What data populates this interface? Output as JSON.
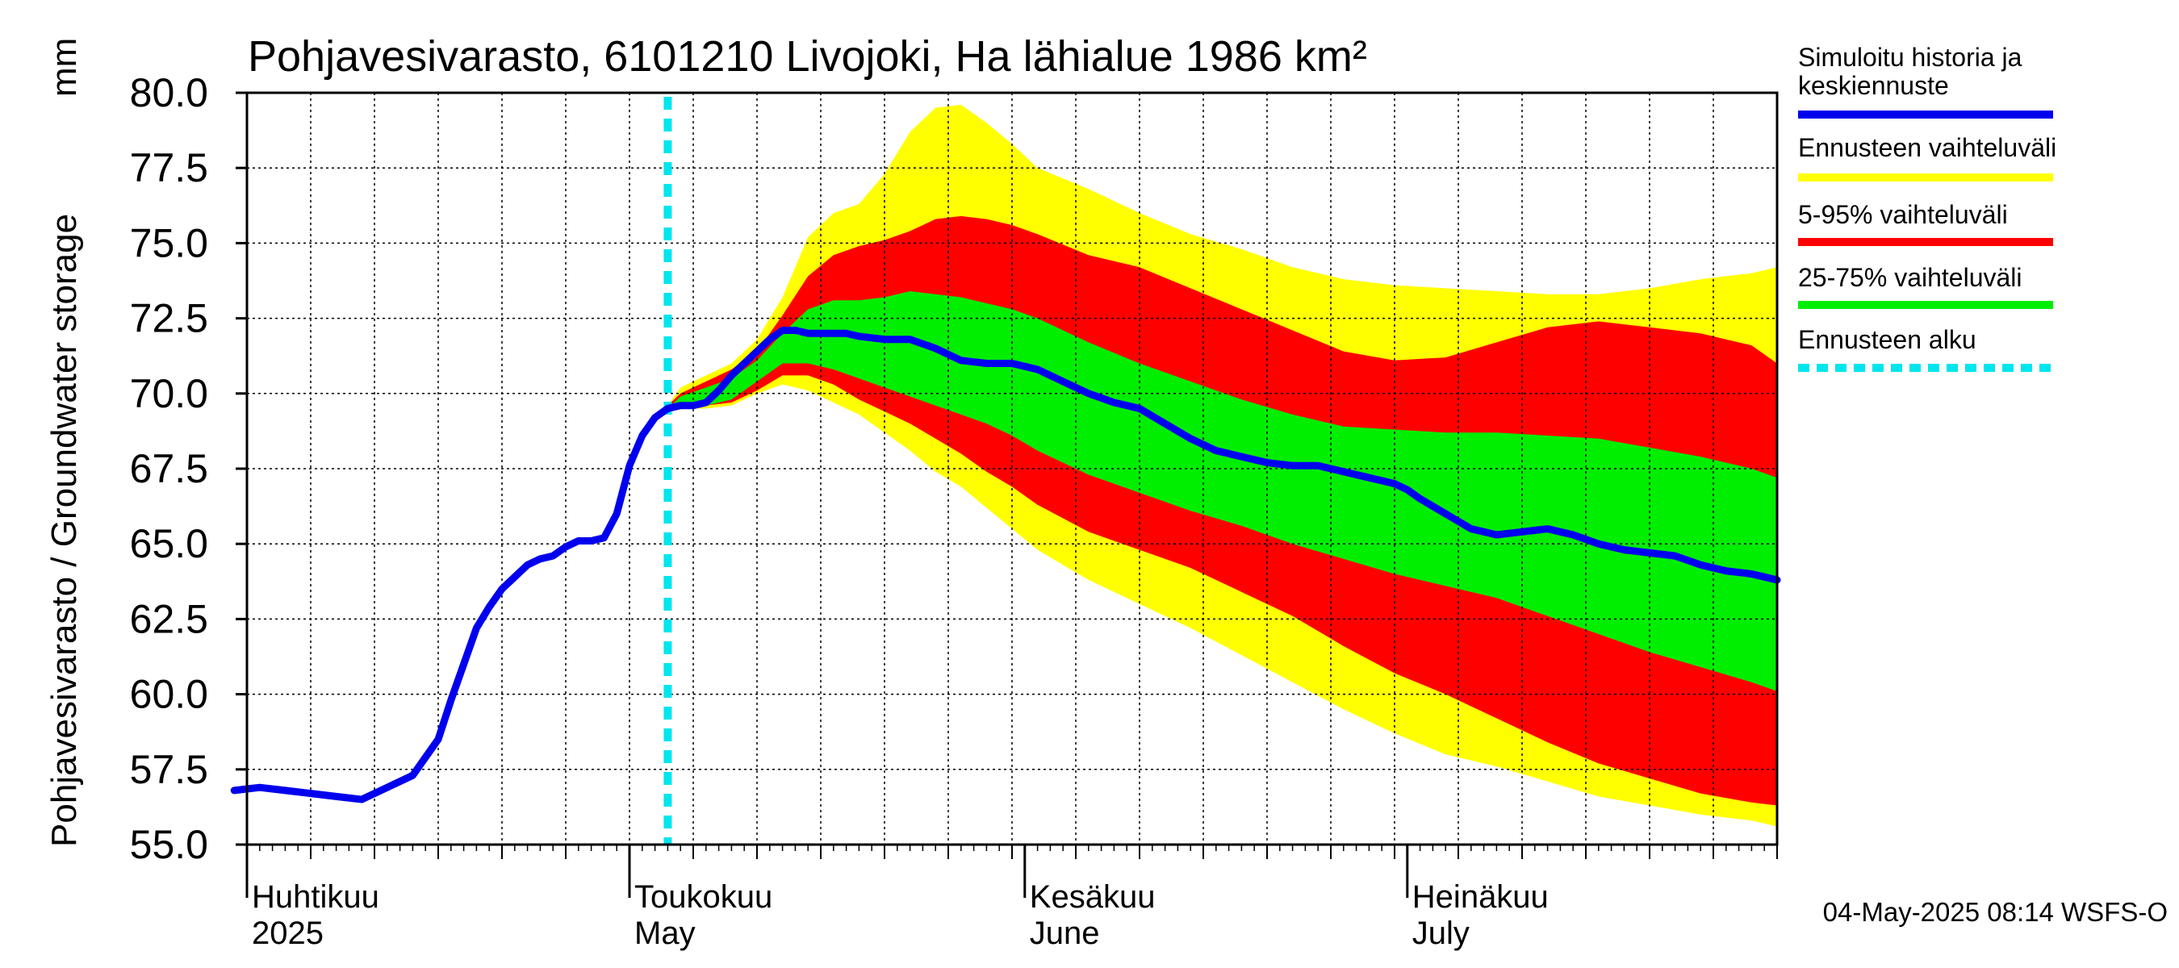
{
  "chart_data": {
    "type": "area",
    "title": "Pohjavesivarasto, 6101210 Livojoki, Ha lähialue 1986 km²",
    "ylabel": "Pohjavesivarasto / Groundwater storage",
    "yunit": "mm",
    "ylim": [
      55.0,
      80.0
    ],
    "yticks": [
      "55.0",
      "57.5",
      "60.0",
      "62.5",
      "65.0",
      "67.5",
      "70.0",
      "72.5",
      "75.0",
      "77.5",
      "80.0"
    ],
    "x_day_range": [
      0,
      120
    ],
    "forecast_start_day": 33,
    "months": [
      {
        "fi": "Huhtikuu",
        "en": "2025",
        "day": 0
      },
      {
        "fi": "Toukokuu",
        "en": "May",
        "day": 30
      },
      {
        "fi": "Kesäkuu",
        "en": "June",
        "day": 61
      },
      {
        "fi": "Heinäkuu",
        "en": "July",
        "day": 91
      }
    ],
    "grid": true,
    "series": [
      {
        "name": "Simuloitu historia ja keskiennuste",
        "color": "#0000ee",
        "days": [
          -1,
          1,
          3,
          5,
          7,
          9,
          11,
          13,
          15,
          16,
          17,
          18,
          19,
          20,
          21,
          22,
          23,
          24,
          25,
          26,
          27,
          28,
          29,
          30,
          31,
          32,
          33,
          34,
          35,
          36,
          37,
          38,
          39,
          40,
          41,
          42,
          43,
          44,
          45,
          46,
          47,
          48,
          50,
          52,
          54,
          56,
          58,
          60,
          62,
          64,
          66,
          68,
          70,
          72,
          74,
          76,
          78,
          80,
          82,
          84,
          86,
          88,
          90,
          91,
          92,
          94,
          96,
          98,
          100,
          102,
          104,
          106,
          108,
          110,
          112,
          114,
          116,
          118,
          120
        ],
        "values": [
          56.8,
          56.9,
          56.8,
          56.7,
          56.6,
          56.5,
          56.9,
          57.3,
          58.5,
          59.8,
          61.0,
          62.2,
          62.9,
          63.5,
          63.9,
          64.3,
          64.5,
          64.6,
          64.9,
          65.1,
          65.1,
          65.2,
          66.0,
          67.6,
          68.6,
          69.2,
          69.5,
          69.6,
          69.6,
          69.7,
          70.1,
          70.6,
          71.0,
          71.4,
          71.8,
          72.1,
          72.1,
          72.0,
          72.0,
          72.0,
          72.0,
          71.9,
          71.8,
          71.8,
          71.5,
          71.1,
          71.0,
          71.0,
          70.8,
          70.4,
          70.0,
          69.7,
          69.5,
          69.0,
          68.5,
          68.1,
          67.9,
          67.7,
          67.6,
          67.6,
          67.4,
          67.2,
          67.0,
          66.8,
          66.5,
          66.0,
          65.5,
          65.3,
          65.4,
          65.5,
          65.3,
          65.0,
          64.8,
          64.7,
          64.6,
          64.3,
          64.1,
          64.0,
          63.8
        ]
      }
    ],
    "bands": [
      {
        "name": "Ennusteen vaihteluväli",
        "color": "#ffff00",
        "days": [
          33,
          34,
          36,
          38,
          40,
          42,
          44,
          46,
          48,
          50,
          52,
          54,
          56,
          58,
          60,
          62,
          66,
          70,
          74,
          78,
          82,
          86,
          90,
          94,
          98,
          102,
          106,
          110,
          114,
          118,
          120
        ],
        "upper": [
          69.6,
          70.2,
          70.6,
          71.0,
          71.8,
          73.2,
          75.2,
          76.0,
          76.3,
          77.3,
          78.7,
          79.5,
          79.6,
          79.0,
          78.3,
          77.5,
          76.8,
          76.0,
          75.3,
          74.8,
          74.2,
          73.8,
          73.6,
          73.5,
          73.4,
          73.3,
          73.3,
          73.5,
          73.8,
          74.0,
          74.2
        ],
        "lower": [
          69.4,
          69.5,
          69.5,
          69.6,
          70.0,
          70.3,
          70.1,
          69.7,
          69.3,
          68.7,
          68.1,
          67.4,
          66.9,
          66.2,
          65.5,
          64.8,
          63.8,
          63.0,
          62.2,
          61.3,
          60.4,
          59.5,
          58.7,
          58.0,
          57.6,
          57.1,
          56.6,
          56.3,
          56.0,
          55.8,
          55.6
        ]
      },
      {
        "name": "5-95% vaihteluväli",
        "color": "#ff0000",
        "days": [
          33,
          34,
          36,
          38,
          40,
          42,
          44,
          46,
          48,
          50,
          52,
          54,
          56,
          58,
          60,
          62,
          66,
          70,
          74,
          78,
          82,
          86,
          90,
          94,
          98,
          102,
          106,
          110,
          114,
          118,
          120
        ],
        "upper": [
          69.6,
          70.0,
          70.4,
          70.8,
          71.4,
          72.6,
          73.9,
          74.6,
          74.9,
          75.1,
          75.4,
          75.8,
          75.9,
          75.8,
          75.6,
          75.3,
          74.6,
          74.2,
          73.5,
          72.8,
          72.1,
          71.4,
          71.1,
          71.2,
          71.7,
          72.2,
          72.4,
          72.2,
          72.0,
          71.6,
          71.0
        ],
        "lower": [
          69.4,
          69.5,
          69.6,
          69.7,
          70.1,
          70.6,
          70.6,
          70.3,
          69.8,
          69.4,
          69.0,
          68.5,
          68.0,
          67.4,
          66.9,
          66.3,
          65.4,
          64.8,
          64.2,
          63.4,
          62.6,
          61.6,
          60.7,
          60.0,
          59.2,
          58.4,
          57.7,
          57.2,
          56.7,
          56.4,
          56.3
        ]
      },
      {
        "name": "25-75% vaihteluväli",
        "color": "#00ee00",
        "days": [
          33,
          34,
          36,
          38,
          40,
          42,
          44,
          46,
          48,
          50,
          52,
          54,
          56,
          58,
          60,
          62,
          66,
          70,
          74,
          78,
          82,
          86,
          90,
          94,
          98,
          102,
          106,
          110,
          114,
          118,
          120
        ],
        "upper": [
          69.5,
          69.9,
          70.2,
          70.5,
          71.1,
          72.0,
          72.8,
          73.1,
          73.1,
          73.2,
          73.4,
          73.3,
          73.2,
          73.0,
          72.8,
          72.5,
          71.7,
          71.0,
          70.4,
          69.8,
          69.3,
          68.9,
          68.8,
          68.7,
          68.7,
          68.6,
          68.5,
          68.2,
          67.9,
          67.5,
          67.2
        ],
        "lower": [
          69.4,
          69.5,
          69.6,
          69.8,
          70.4,
          71.0,
          71.0,
          70.8,
          70.5,
          70.2,
          69.9,
          69.6,
          69.3,
          69.0,
          68.6,
          68.1,
          67.3,
          66.7,
          66.1,
          65.6,
          65.0,
          64.5,
          64.0,
          63.6,
          63.2,
          62.6,
          62.0,
          61.4,
          60.9,
          60.4,
          60.1
        ]
      }
    ]
  },
  "legend": [
    {
      "label": "Simuloitu historia ja",
      "label2": "keskiennuste",
      "color": "#0000ee",
      "style": "solid"
    },
    {
      "label": "Ennusteen vaihteluväli",
      "color": "#ffff00",
      "style": "solid"
    },
    {
      "label": "5-95% vaihteluväli",
      "color": "#ff0000",
      "style": "solid"
    },
    {
      "label": "25-75% vaihteluväli",
      "color": "#00ee00",
      "style": "solid"
    },
    {
      "label": "Ennusteen alku",
      "color": "#00e5ee",
      "style": "dashed"
    }
  ],
  "footer": "04-May-2025 08:14 WSFS-O"
}
